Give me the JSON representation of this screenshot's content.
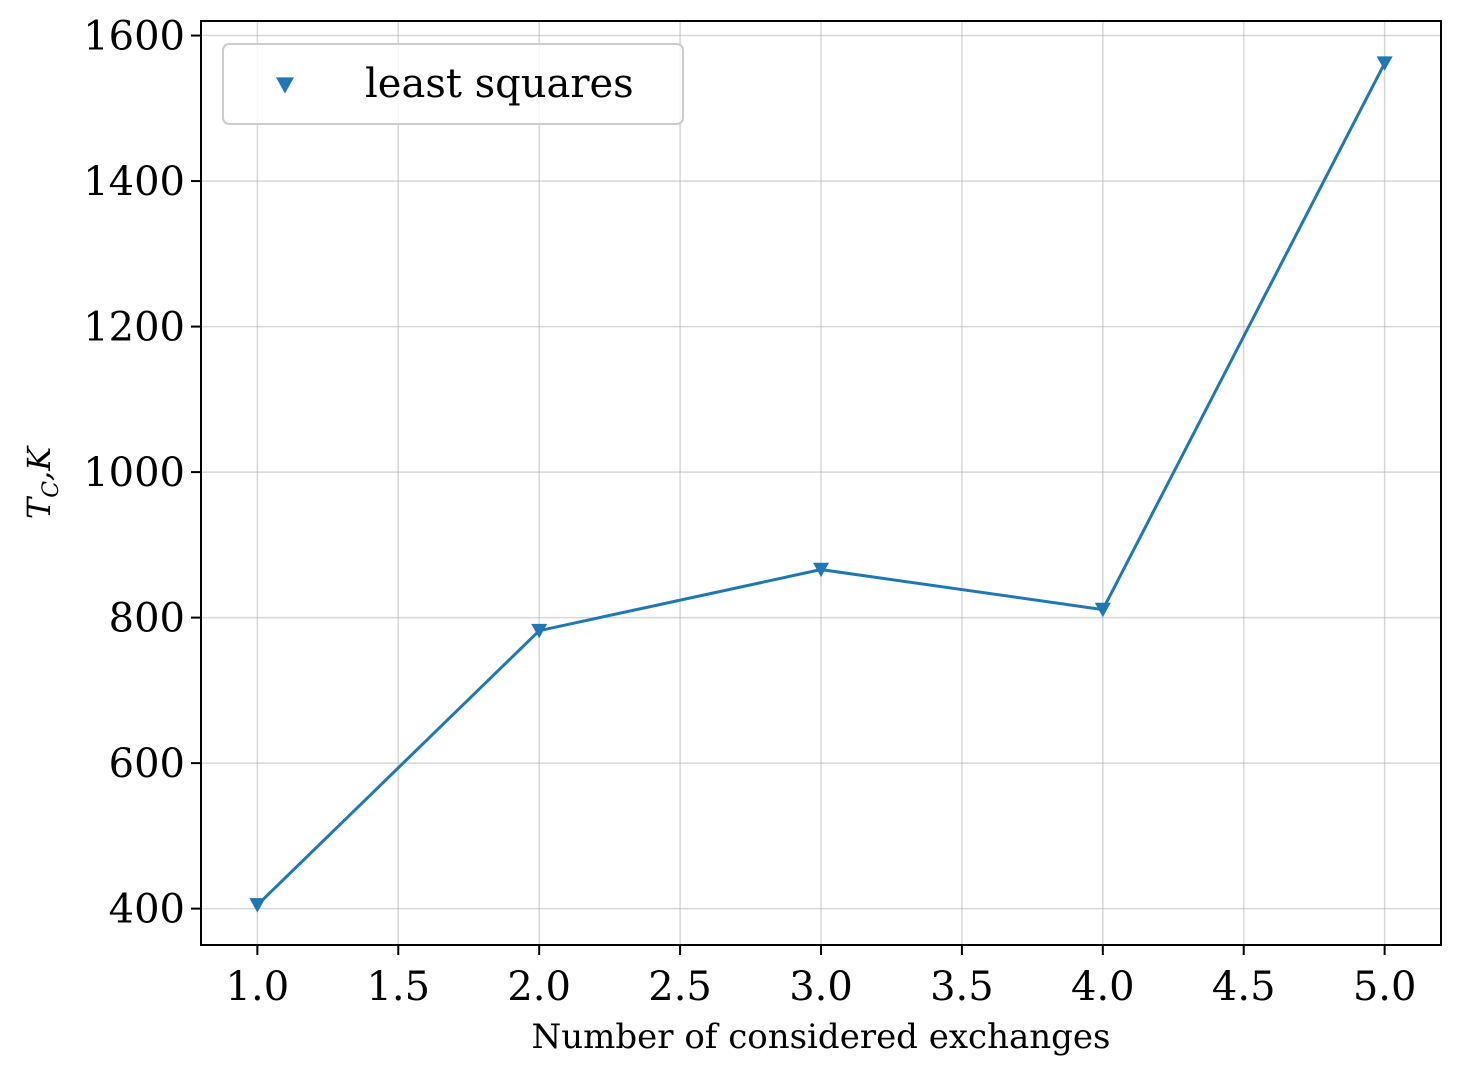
{
  "chart_data": {
    "type": "line",
    "xlabel": "Number of considered exchanges",
    "ylabel": {
      "main": "T",
      "subscript": "C",
      "rest": ",K"
    },
    "xlim": [
      0.8,
      5.2
    ],
    "ylim": [
      350,
      1620
    ],
    "xticks": [
      1.0,
      1.5,
      2.0,
      2.5,
      3.0,
      3.5,
      4.0,
      4.5,
      5.0
    ],
    "xtick_labels": [
      "1.0",
      "1.5",
      "2.0",
      "2.5",
      "3.0",
      "3.5",
      "4.0",
      "4.5",
      "5.0"
    ],
    "yticks": [
      400,
      600,
      800,
      1000,
      1200,
      1400,
      1600
    ],
    "ytick_labels": [
      "400",
      "600",
      "800",
      "1000",
      "1200",
      "1400",
      "1600"
    ],
    "grid": true,
    "legend": {
      "position": "top-left"
    },
    "series": [
      {
        "name": "least squares",
        "marker": "triangle-down",
        "color": "#1f77b4",
        "x": [
          1.0,
          2.0,
          3.0,
          4.0,
          5.0
        ],
        "y": [
          405,
          782,
          866,
          811,
          1562
        ]
      }
    ]
  }
}
